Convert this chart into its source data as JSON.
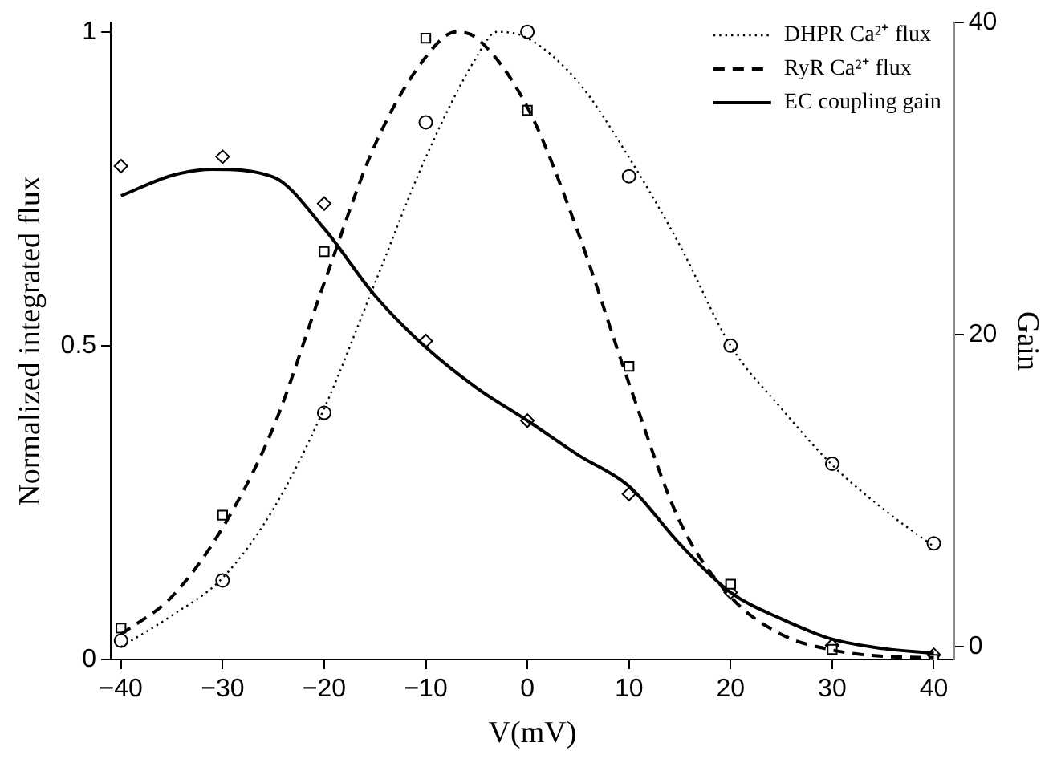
{
  "chart_data": {
    "type": "line",
    "xlabel": "V(mV)",
    "ylabel": "Normalized integrated flux",
    "y2label": "Gain",
    "xlim": [
      -41,
      42
    ],
    "ylim": [
      0,
      1.015
    ],
    "y2lim": [
      -0.8,
      40
    ],
    "xticks": [
      {
        "value": -40,
        "label": "−40"
      },
      {
        "value": -30,
        "label": "−30"
      },
      {
        "value": -20,
        "label": "−20"
      },
      {
        "value": -10,
        "label": "−10"
      },
      0,
      10,
      20,
      30,
      40
    ],
    "yticks": [
      0,
      0.5,
      1
    ],
    "y2ticks": [
      0,
      20,
      40
    ],
    "grid": false,
    "legend": "top right",
    "series": [
      {
        "type": "line",
        "name": "DHPR Ca²⁺ flux",
        "color": "#000000",
        "line_style": "dotted",
        "marker": "none",
        "x": [
          -40,
          -35,
          -30,
          -25,
          -20,
          -15,
          -10,
          -5,
          -3,
          0,
          5,
          10,
          15,
          20,
          25,
          30,
          35,
          40
        ],
        "values": [
          0.02,
          0.07,
          0.13,
          0.24,
          0.4,
          0.6,
          0.8,
          0.96,
          1.0,
          0.99,
          0.92,
          0.8,
          0.66,
          0.5,
          0.4,
          0.31,
          0.24,
          0.18
        ]
      },
      {
        "type": "line",
        "name": "RyR Ca²⁺ flux",
        "color": "#000000",
        "line_style": "dashed",
        "marker": "none",
        "x": [
          -40,
          -35,
          -30,
          -25,
          -20,
          -15,
          -10,
          -7,
          -5,
          0,
          5,
          10,
          15,
          20,
          25,
          30,
          35,
          40
        ],
        "values": [
          0.04,
          0.1,
          0.21,
          0.37,
          0.6,
          0.82,
          0.96,
          1.0,
          0.99,
          0.88,
          0.68,
          0.44,
          0.22,
          0.1,
          0.04,
          0.015,
          0.005,
          0.003
        ]
      },
      {
        "type": "line",
        "name": "EC coupling gain",
        "color": "#000000",
        "line_style": "solid",
        "marker": "none",
        "axis": "y2",
        "x": [
          -40,
          -35,
          -31,
          -25,
          -20,
          -15,
          -10,
          -5,
          0,
          5,
          10,
          15,
          20,
          25,
          30,
          35,
          40
        ],
        "values": [
          28.9,
          30.2,
          30.6,
          30.1,
          26.8,
          22.5,
          19.2,
          16.6,
          14.5,
          12.3,
          10.3,
          6.6,
          3.5,
          1.8,
          0.5,
          -0.1,
          -0.4
        ]
      },
      {
        "type": "scatter",
        "color": "#000000",
        "marker": "circle",
        "x": [
          -40,
          -30,
          -20,
          -10,
          0,
          10,
          20,
          30,
          40
        ],
        "values": [
          0.03,
          0.126,
          0.393,
          0.856,
          1.0,
          0.77,
          0.5,
          0.312,
          0.185
        ]
      },
      {
        "type": "scatter",
        "color": "#000000",
        "marker": "square",
        "x": [
          -40,
          -30,
          -20,
          -10,
          0,
          10,
          20,
          30,
          40
        ],
        "values": [
          0.05,
          0.23,
          0.65,
          0.99,
          0.875,
          0.467,
          0.12,
          0.016,
          0.0
        ]
      },
      {
        "type": "scatter",
        "color": "#000000",
        "marker": "diamond",
        "axis": "y2",
        "x": [
          -40,
          -30,
          -20,
          -10,
          0,
          10,
          20,
          30,
          40
        ],
        "values": [
          30.8,
          31.4,
          28.4,
          19.6,
          14.5,
          9.8,
          3.5,
          0.1,
          -0.5
        ]
      }
    ]
  }
}
